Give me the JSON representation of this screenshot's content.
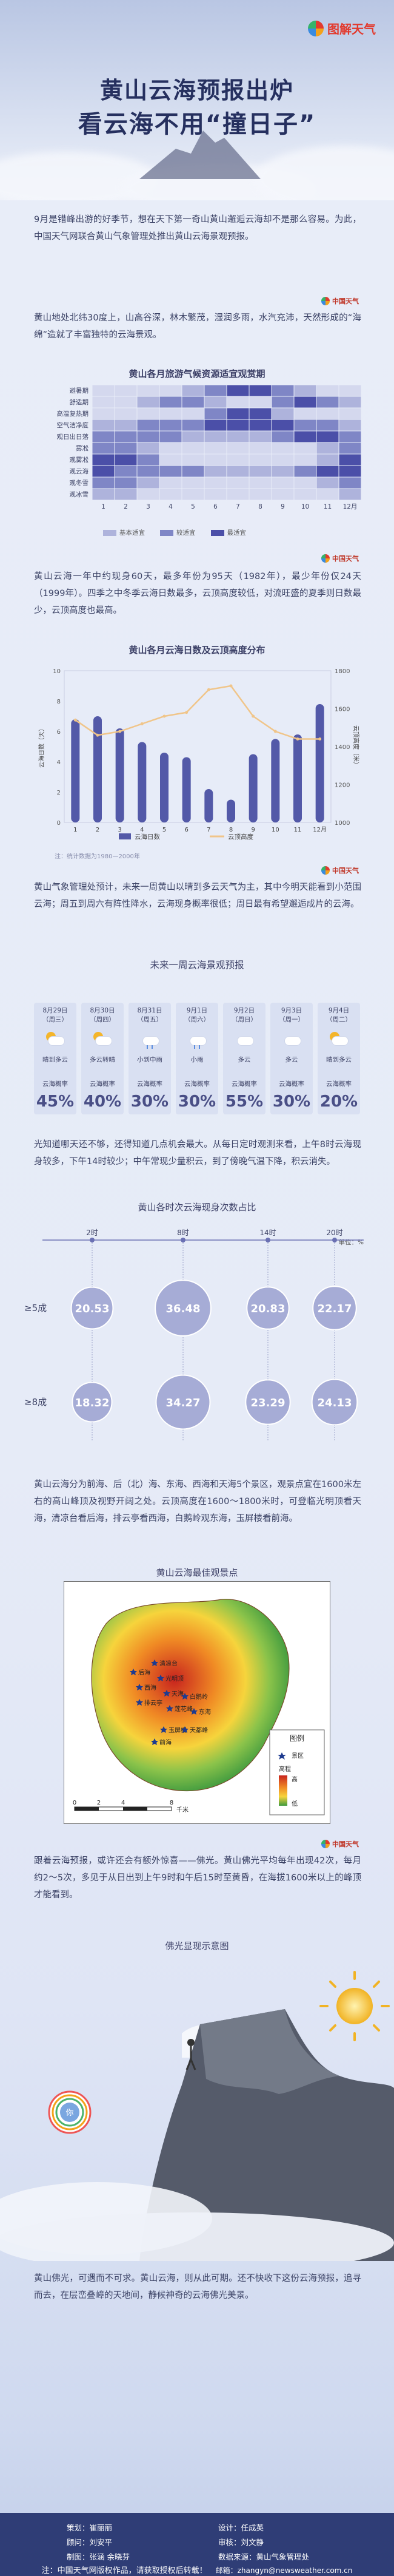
{
  "brand": {
    "name": "图解天气",
    "badge": "中国天气"
  },
  "title": {
    "line1": "黄山云海预报出炉",
    "line2": "看云海不用“撞日子”"
  },
  "intro": [
    "9月是错峰出游的好季节，想在天下第一奇山黄山邂逅云海却不是那么容易。为此，中国天气网联合黄山气象管理处推出黄山云海景观预报。",
    "黄山地处北纬30度上，山高谷深，林木繁茂，湿润多雨，水汽充沛，天然形成的“海绵”造就了丰富独特的云海景观。"
  ],
  "heatmap": {
    "title": "黄山各月旅游气候资源适宜观赏期",
    "rows": [
      "避暑期",
      "舒适期",
      "高温复热期",
      "空气洁净度",
      "观日出日落",
      "雾凇",
      "观雾凇",
      "观云海",
      "观冬雪",
      "观冰雪"
    ],
    "months": [
      "1",
      "2",
      "3",
      "4",
      "5",
      "6",
      "7",
      "8",
      "9",
      "10",
      "11",
      "12月"
    ],
    "legend": [
      "基本适宜",
      "较适宜",
      "最适宜"
    ],
    "levels": [
      [
        0,
        0,
        0,
        0,
        1,
        2,
        3,
        3,
        2,
        1,
        0,
        0
      ],
      [
        0,
        0,
        1,
        2,
        2,
        1,
        0,
        0,
        2,
        3,
        2,
        1
      ],
      [
        0,
        0,
        0,
        0,
        0,
        2,
        3,
        3,
        1,
        0,
        0,
        0
      ],
      [
        1,
        1,
        2,
        2,
        2,
        3,
        3,
        3,
        3,
        2,
        2,
        1
      ],
      [
        2,
        2,
        2,
        2,
        1,
        1,
        1,
        1,
        2,
        3,
        3,
        2
      ],
      [
        2,
        2,
        1,
        0,
        0,
        0,
        0,
        0,
        0,
        0,
        1,
        2
      ],
      [
        3,
        3,
        2,
        0,
        0,
        0,
        0,
        0,
        0,
        0,
        1,
        3
      ],
      [
        3,
        2,
        2,
        2,
        2,
        1,
        1,
        1,
        1,
        2,
        3,
        3
      ],
      [
        2,
        2,
        1,
        0,
        0,
        0,
        0,
        0,
        0,
        0,
        1,
        2
      ],
      [
        1,
        1,
        0,
        0,
        0,
        0,
        0,
        0,
        0,
        0,
        0,
        1
      ]
    ]
  },
  "para2": "黄山云海一年中约现身60天，最多年份为95天（1982年），最少年份仅24天（1999年）。四季之中冬季云海日数最多，云顶高度较低，对流旺盛的夏季则日数最少，云顶高度也最高。",
  "chart_title": "黄山各月云海日数及云顶高度分布",
  "chart_data": {
    "type": "bar",
    "categories": [
      "1",
      "2",
      "3",
      "4",
      "5",
      "6",
      "7",
      "8",
      "9",
      "10",
      "11",
      "12月"
    ],
    "series": [
      {
        "name": "云海日数",
        "values": [
          6.8,
          7.0,
          6.2,
          5.3,
          4.6,
          4.3,
          2.2,
          1.5,
          4.5,
          5.5,
          5.8,
          7.8
        ]
      },
      {
        "name": "云顶高度",
        "values": [
          1540,
          1460,
          1480,
          1520,
          1560,
          1580,
          1700,
          1720,
          1560,
          1480,
          1440,
          1440
        ]
      }
    ],
    "ylabel": "云海日数（天）",
    "y2label": "云顶高度（米）",
    "ylim": [
      0,
      10
    ],
    "y2lim": [
      1000,
      1800
    ],
    "yticks": [
      "0",
      "2",
      "4",
      "6",
      "8",
      "10"
    ],
    "y2ticks": [
      "1000",
      "1200",
      "1400",
      "1600",
      "1800"
    ]
  },
  "chart_note": "注：统计数据为1980—2000年",
  "para3": "黄山气象管理处预计，未来一周黄山以晴到多云天气为主，其中今明天能看到小范围云海；周五到周六有阵性降水，云海现身概率很低；周日最有希望邂逅成片的云海。",
  "forecast": {
    "title": "未来一周云海景观预报",
    "days": [
      {
        "date": "8月29日\n（周三）",
        "weather": "晴到多云",
        "label": "云海概率",
        "prob": "45%"
      },
      {
        "date": "8月30日\n（周四）",
        "weather": "多云转晴",
        "label": "云海概率",
        "prob": "40%"
      },
      {
        "date": "8月31日\n（周五）",
        "weather": "小到中雨",
        "label": "云海概率",
        "prob": "30%"
      },
      {
        "date": "9月1日\n（周六）",
        "weather": "小雨",
        "label": "云海概率",
        "prob": "30%"
      },
      {
        "date": "9月2日\n（周日）",
        "weather": "多云",
        "label": "云海概率",
        "prob": "55%"
      },
      {
        "date": "9月3日\n（周一）",
        "weather": "多云",
        "label": "云海概率",
        "prob": "30%"
      },
      {
        "date": "9月4日\n（周二）",
        "weather": "晴到多云",
        "label": "云海概率",
        "prob": "20%"
      }
    ]
  },
  "para4": "光知道哪天还不够，还得知道几点机会最大。从每日定时观测来看，上午8时云海现身较多，下午14时较少；中午常现少量积云，到了傍晚气温下降，积云消失。",
  "bubbles": {
    "title": "黄山各时次云海现身次数占比",
    "times": [
      "2时",
      "8时",
      "14时",
      "20时"
    ],
    "unit": "单位：%",
    "row_labels": [
      "≥5成",
      "≥8成"
    ],
    "row1": [
      "20.53",
      "36.48",
      "20.83",
      "22.17"
    ],
    "row2": [
      "18.32",
      "34.27",
      "23.29",
      "24.13"
    ]
  },
  "para5": "黄山云海分为前海、后（北）海、东海、西海和天海5个景区，观景点宜在1600米左右的高山峰顶及视野开阔之处。云顶高度在1600～1800米时，可登临光明顶看天海，清凉台看后海，排云亭看西海，白鹅岭观东海，玉屏楼看前海。",
  "map": {
    "title": "黄山云海最佳观景点",
    "legend_title": "图例",
    "legend_scenic": "景区",
    "legend_elev": "高程",
    "legend_high": "高",
    "legend_low": "低",
    "scale": "千米",
    "scale_ticks": [
      "0",
      "2",
      "4",
      "8"
    ],
    "places": [
      "后海",
      "清凉台",
      "光明顶",
      "西海",
      "天海",
      "排云亭",
      "白鹅岭",
      "东海",
      "莲花峰",
      "玉屏楼",
      "天都峰",
      "前海"
    ]
  },
  "para6": "跟着云海预报，或许还会有额外惊喜——佛光。黄山佛光平均每年出现42次，每月约2～5次，多见于从日出到上午9时和午后15时至黄昏，在海拔1600米以上的峰顶才能看到。",
  "halo": {
    "title": "佛光显现示意图",
    "person": "你"
  },
  "para7": "黄山佛光，可遇而不可求。黄山云海，则从此可期。还不快收下这份云海预报，追寻而去，在层峦叠嶂的天地间，静候神奇的云海佛光美景。",
  "credits": {
    "l1a": "策划：崔丽丽",
    "l1b": "设计：任成英",
    "l2a": "顾问：刘安平",
    "l2b": "审核：刘文静",
    "l3": "制图：张涵  余晓芬",
    "l3b": "数据来源：黄山气象管理处",
    "notice": "注：中国天气网版权作品，请获取授权后转载！",
    "email": "邮箱：zhangyn@newsweather.com.cn"
  },
  "colors": {
    "lv0": "#d4d8ee",
    "lv1": "#aeb3dc",
    "lv2": "#7f86c6",
    "lv3": "#4b4fa8",
    "bar": "#5359a8",
    "line": "#f0c58a"
  }
}
